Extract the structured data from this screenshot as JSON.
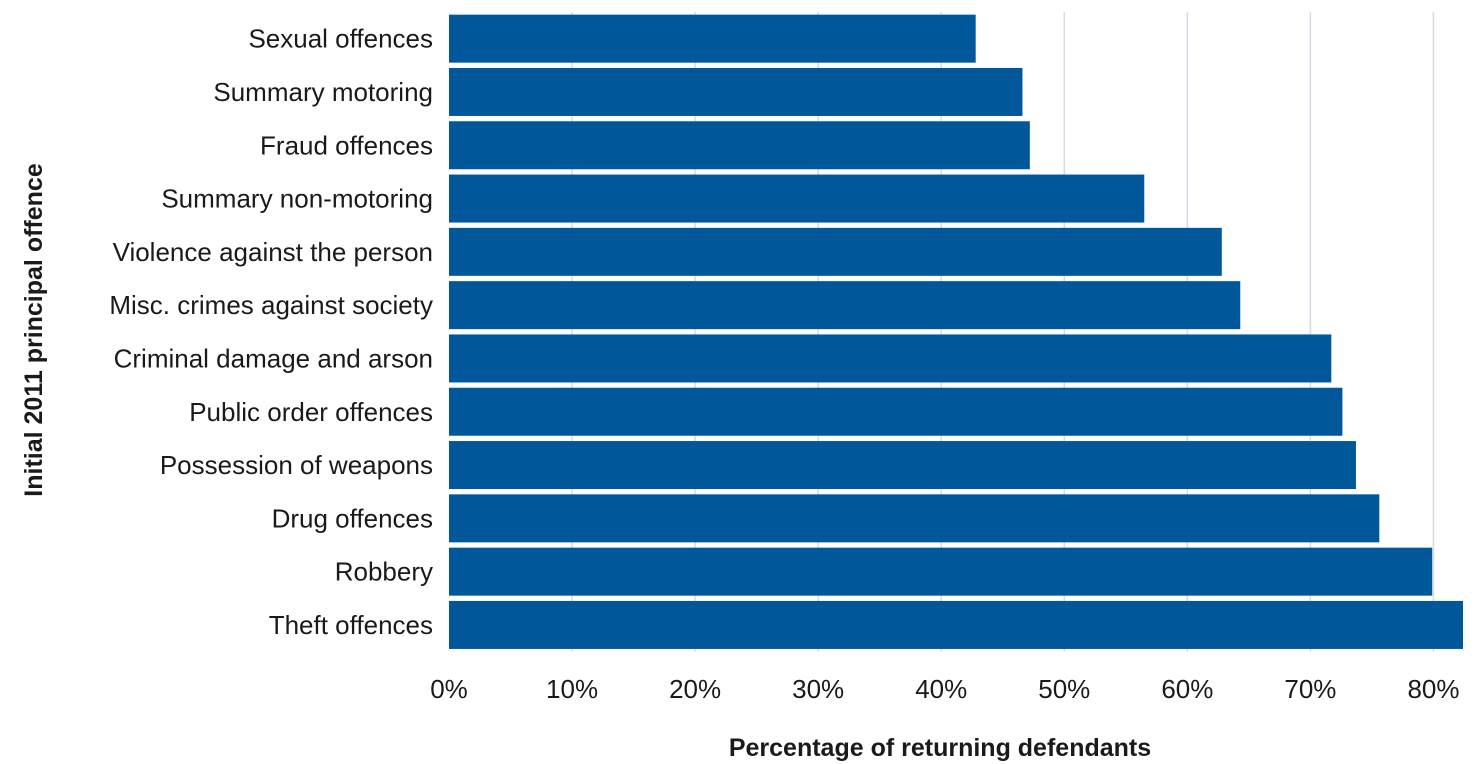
{
  "chart_data": {
    "type": "bar",
    "orientation": "horizontal",
    "categories": [
      "Sexual offences",
      "Summary motoring",
      "Fraud offences",
      "Summary non-motoring",
      "Violence against the person",
      "Misc. crimes against society",
      "Criminal damage and arson",
      "Public order offences",
      "Possession of weapons",
      "Drug offences",
      "Robbery",
      "Theft offences"
    ],
    "values": [
      42.8,
      46.6,
      47.2,
      56.5,
      62.8,
      64.3,
      71.7,
      72.6,
      73.7,
      75.6,
      79.9,
      82.4
    ],
    "title": "",
    "xlabel": "Percentage of returning defendants",
    "ylabel": "Initial 2011 principal offence",
    "xlim": [
      0,
      82.4
    ],
    "xticks": [
      0,
      10,
      20,
      30,
      40,
      50,
      60,
      70,
      80
    ],
    "tick_labels": [
      "0%",
      "10%",
      "20%",
      "30%",
      "40%",
      "50%",
      "60%",
      "70%",
      "80%"
    ],
    "grid": "vertical",
    "legend": "none",
    "bar_color": "#00589b"
  }
}
